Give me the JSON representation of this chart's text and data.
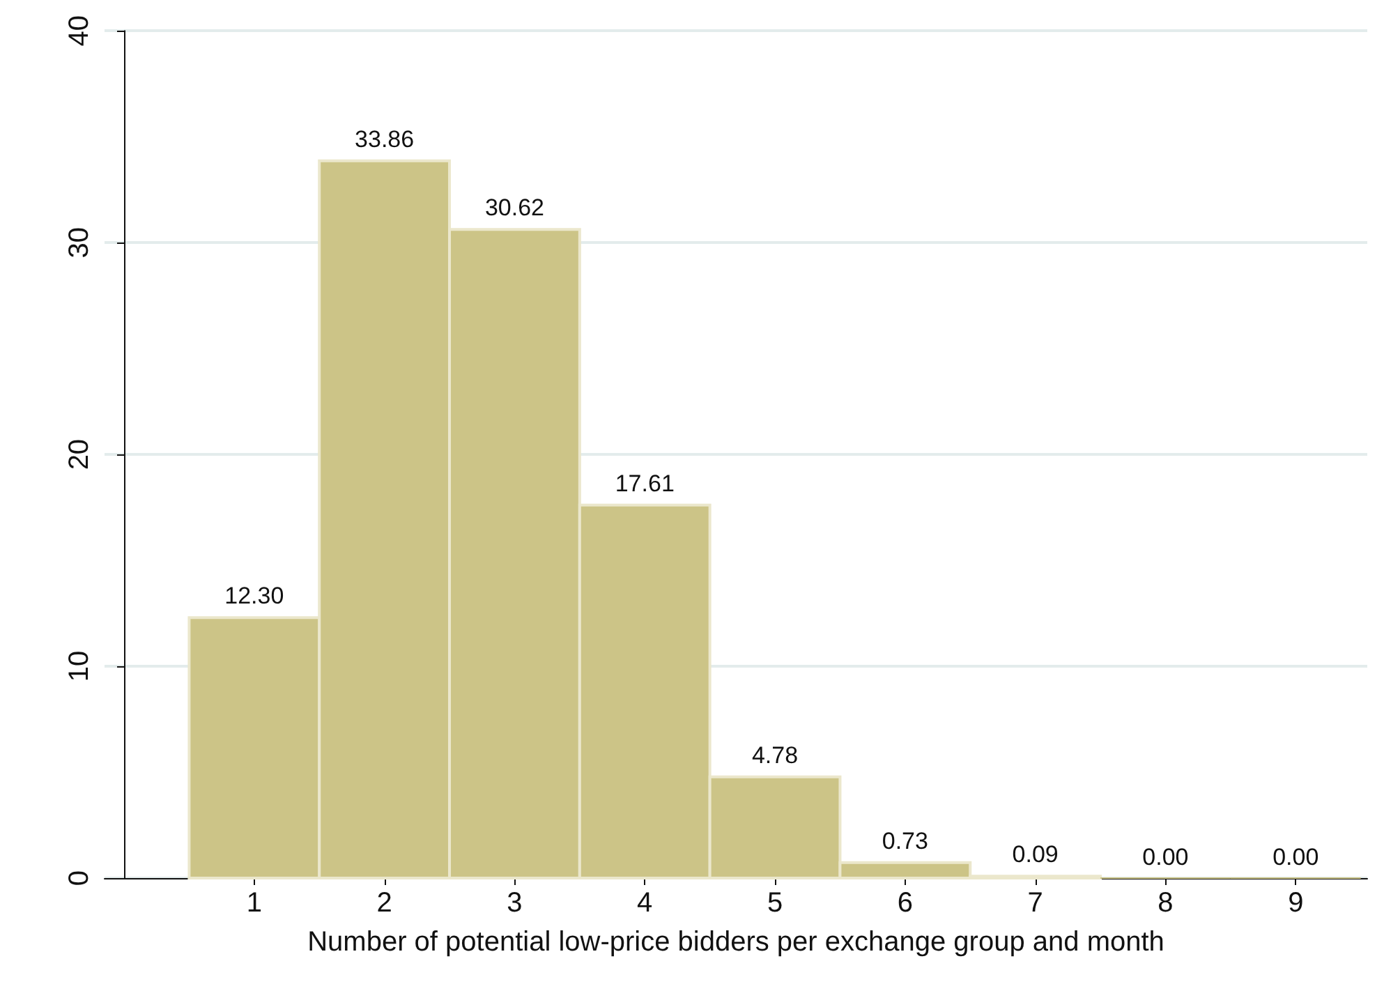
{
  "chart_data": {
    "type": "histogram",
    "xlabel": "Number of potential low-price bidders per exchange group and month",
    "bins": [
      0.5,
      1.5,
      2.5,
      3.5,
      4.5,
      5.5,
      6.5,
      7.5,
      8.5,
      9.5
    ],
    "values": [
      12.3,
      33.86,
      30.62,
      17.61,
      4.78,
      0.73,
      0.09,
      0,
      0
    ],
    "value_labels": [
      "12.30",
      "33.86",
      "30.62",
      "17.61",
      "4.78",
      "0.73",
      "0.09",
      "0.00",
      "0.00"
    ],
    "color": "#ccc487",
    "xlim": [
      -0.15,
      9.55
    ],
    "xticks": [
      1,
      2,
      3,
      4,
      5,
      6,
      7,
      8,
      9
    ],
    "ylim": [
      0,
      40
    ],
    "yticks": [
      0,
      10,
      20,
      30,
      40
    ],
    "grid": "y"
  }
}
